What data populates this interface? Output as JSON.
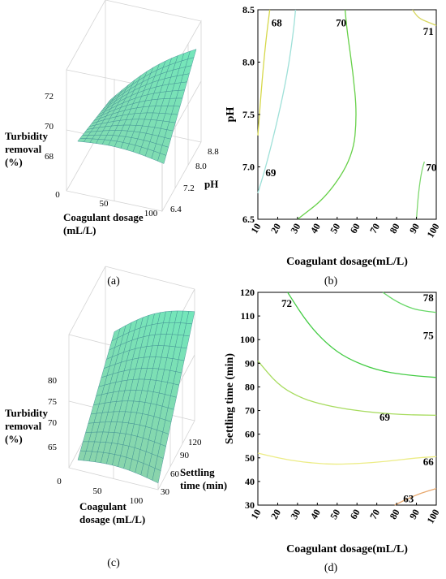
{
  "panels": [
    "(a)",
    "(b)",
    "(c)",
    "(d)"
  ],
  "chart_data": [
    {
      "type": "surface",
      "panel": "(a)",
      "zlabel": [
        "Turbidity",
        "removal",
        "(%)"
      ],
      "xlabel": [
        "Coagulant dosage",
        "(mL/L)"
      ],
      "ylabel": [
        "pH"
      ],
      "x_ticks": [
        "0",
        "50",
        "100"
      ],
      "y_ticks": [
        "6.4",
        "7.2",
        "8.0",
        "8.8"
      ],
      "z_ticks": [
        "68",
        "70",
        "72"
      ],
      "xlim": [
        0,
        100
      ],
      "ylim": [
        6.4,
        8.8
      ],
      "zlim": [
        67,
        73
      ],
      "surface": {
        "x": [
          10,
          100
        ],
        "y": [
          6.5,
          8.5
        ],
        "corners": {
          "x10_y6.5": 69.4,
          "x100_y6.5": 69.2,
          "x10_y8.5": 68.6,
          "x100_y8.5": 72.0
        }
      },
      "surface_color": "#7fe0b0"
    },
    {
      "type": "contour",
      "panel": "(b)",
      "xlabel": "Coagulant dosage(mL/L)",
      "ylabel": "pH",
      "x_ticks": [
        "10",
        "20",
        "30",
        "40",
        "50",
        "60",
        "70",
        "80",
        "90",
        "100"
      ],
      "y_ticks": [
        "6.5",
        "7.0",
        "7.5",
        "8.0",
        "8.5"
      ],
      "xlim": [
        10,
        100
      ],
      "ylim": [
        6.5,
        8.5
      ],
      "contours": [
        {
          "level": "68",
          "color": "#d6d84a",
          "points": [
            [
              10,
              7.3
            ],
            [
              12,
              7.8
            ],
            [
              14,
              8.2
            ],
            [
              16,
              8.5
            ]
          ]
        },
        {
          "level": "69",
          "color": "#9ee0d8",
          "points": [
            [
              10,
              6.75
            ],
            [
              14,
              7.0
            ],
            [
              20,
              7.45
            ],
            [
              25,
              7.9
            ],
            [
              28,
              8.3
            ],
            [
              29,
              8.5
            ]
          ]
        },
        {
          "level": "70",
          "color": "#66d048",
          "points": [
            [
              30,
              6.5
            ],
            [
              45,
              6.72
            ],
            [
              58,
              7.1
            ],
            [
              60,
              7.5
            ],
            [
              58,
              7.9
            ],
            [
              55,
              8.3
            ],
            [
              54,
              8.5
            ]
          ]
        },
        {
          "level": "70",
          "color": "#7fd870",
          "points": [
            [
              90,
              6.5
            ],
            [
              91,
              6.75
            ],
            [
              92.5,
              6.95
            ],
            [
              94,
              7.05
            ]
          ]
        },
        {
          "level": "71",
          "color": "#d8d860",
          "points": [
            [
              88,
              8.5
            ],
            [
              91,
              8.42
            ],
            [
              96,
              8.38
            ],
            [
              100,
              8.35
            ]
          ]
        }
      ],
      "contour_labels": [
        {
          "text": "68",
          "x": 19.5,
          "y": 8.38
        },
        {
          "text": "69",
          "x": 16.5,
          "y": 6.95
        },
        {
          "text": "70",
          "x": 52,
          "y": 8.38
        },
        {
          "text": "71",
          "x": 96,
          "y": 8.3
        },
        {
          "text": "70",
          "x": 97.5,
          "y": 7.0
        }
      ]
    },
    {
      "type": "surface",
      "panel": "(c)",
      "zlabel": [
        "Turbidity",
        "removal",
        "(%)"
      ],
      "xlabel": [
        "Coagulant",
        "dosage (mL/L)"
      ],
      "ylabel": [
        "Settling",
        "time (min)"
      ],
      "x_ticks": [
        "0",
        "50",
        "100"
      ],
      "y_ticks": [
        "30",
        "60",
        "90",
        "120"
      ],
      "z_ticks": [
        "65",
        "70",
        "75",
        "80"
      ],
      "xlim": [
        0,
        100
      ],
      "ylim": [
        30,
        120
      ],
      "zlim": [
        62,
        82
      ],
      "surface": {
        "x": [
          10,
          100
        ],
        "y": [
          30,
          120
        ],
        "corners": {
          "x10_y30": 63.5,
          "x100_y30": 63.0,
          "x10_y120": 72.5,
          "x100_y120": 78.5
        }
      },
      "surface_color": "#7fe0b0"
    },
    {
      "type": "contour",
      "panel": "(d)",
      "xlabel": "Coagulant dosage(mL/L)",
      "ylabel": "Settling time (min)",
      "x_ticks": [
        "10",
        "20",
        "30",
        "40",
        "50",
        "60",
        "70",
        "80",
        "90",
        "100"
      ],
      "y_ticks": [
        "30",
        "40",
        "50",
        "60",
        "70",
        "80",
        "90",
        "100",
        "110",
        "120"
      ],
      "xlim": [
        10,
        100
      ],
      "ylim": [
        30,
        120
      ],
      "contours": [
        {
          "level": "78",
          "color": "#68d868",
          "points": [
            [
              73,
              120
            ],
            [
              80,
              116
            ],
            [
              88,
              113
            ],
            [
              95,
              112
            ],
            [
              100,
              111.5
            ]
          ]
        },
        {
          "level": "75",
          "color": "#44cc44",
          "points": [
            [
              25,
              120
            ],
            [
              35,
              107
            ],
            [
              45,
              98
            ],
            [
              55,
              92
            ],
            [
              70,
              87
            ],
            [
              85,
              85
            ],
            [
              100,
              84
            ]
          ]
        },
        {
          "level": "72",
          "color": "#a8dc60",
          "points": [
            [
              10,
              91
            ],
            [
              20,
              81
            ],
            [
              30,
              76
            ],
            [
              40,
              73
            ],
            [
              55,
              70.5
            ],
            [
              70,
              69
            ],
            [
              85,
              68.2
            ],
            [
              100,
              68
            ]
          ]
        },
        {
          "level": "66",
          "color": "#ecec86",
          "points": [
            [
              10,
              52
            ],
            [
              20,
              50
            ],
            [
              30,
              48.5
            ],
            [
              45,
              47.2
            ],
            [
              60,
              47.5
            ],
            [
              75,
              48.5
            ],
            [
              90,
              50
            ],
            [
              100,
              50.5
            ]
          ]
        },
        {
          "level": "63",
          "color": "#e8a86e",
          "points": [
            [
              79,
              30
            ],
            [
              85,
              32.5
            ],
            [
              92,
              35
            ],
            [
              100,
              37
            ]
          ]
        }
      ],
      "contour_labels": [
        {
          "text": "78",
          "x": 96,
          "y": 118
        },
        {
          "text": "72",
          "x": 24.5,
          "y": 115.5
        },
        {
          "text": "75",
          "x": 96,
          "y": 102
        },
        {
          "text": "69",
          "x": 74,
          "y": 67.5
        },
        {
          "text": "66",
          "x": 96,
          "y": 48.5
        },
        {
          "text": "63",
          "x": 86,
          "y": 33
        }
      ]
    }
  ]
}
